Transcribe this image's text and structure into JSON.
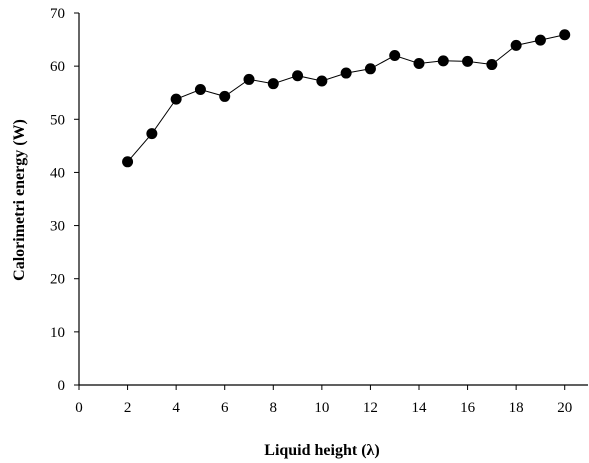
{
  "chart_data": {
    "type": "line",
    "title": "",
    "xlabel": "Liquid height (λ)",
    "ylabel": "Calorimetri energy (W)",
    "xlim": [
      0,
      21
    ],
    "ylim": [
      0,
      70
    ],
    "xticks": [
      0,
      2,
      4,
      6,
      8,
      10,
      12,
      14,
      16,
      18,
      20
    ],
    "yticks": [
      0,
      10,
      20,
      30,
      40,
      50,
      60,
      70
    ],
    "grid": false,
    "legend": "none",
    "series": [
      {
        "marker": "circle",
        "color": "#000000",
        "x": [
          2,
          3,
          4,
          5,
          6,
          7,
          8,
          9,
          10,
          11,
          12,
          13,
          14,
          15,
          16,
          17,
          18,
          19,
          20
        ],
        "y": [
          42,
          47.3,
          53.8,
          55.6,
          54.3,
          57.5,
          56.7,
          58.2,
          57.2,
          58.7,
          59.5,
          62,
          60.5,
          61,
          60.9,
          60.3,
          63.9,
          64.9,
          65.9
        ]
      }
    ]
  }
}
